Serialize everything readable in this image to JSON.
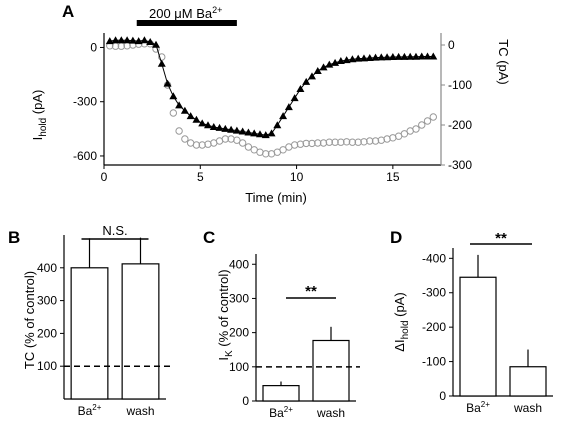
{
  "chart_data": [
    {
      "panel": "A",
      "type": "scatter",
      "title": "",
      "xlabel": "Time (min)",
      "ylabel_left": "I",
      "ylabel_left_sub": "hold",
      "ylabel_left_unit": " (pA)",
      "ylabel_right": "TC  (pA)",
      "xlim": [
        0,
        17.5
      ],
      "ylim_left": [
        -650,
        80
      ],
      "ylim_right": [
        -300,
        30
      ],
      "xticks": [
        "0",
        "5",
        "10",
        "15"
      ],
      "yticks_left": [
        "0",
        "-300",
        "-600"
      ],
      "yticks_right": [
        "0",
        "-100",
        "-200",
        "-300"
      ],
      "treatment_bar": {
        "label": "200 μM Ba",
        "label_sup": "2+",
        "x_start": 1.7,
        "x_end": 6.9
      },
      "series": [
        {
          "axis": "left",
          "marker": "triangle",
          "x": [
            0.3,
            0.6,
            0.9,
            1.2,
            1.5,
            1.8,
            2.1,
            2.4,
            2.7,
            3.0,
            3.3,
            3.6,
            3.9,
            4.2,
            4.5,
            4.8,
            5.1,
            5.4,
            5.7,
            6.0,
            6.3,
            6.6,
            6.9,
            7.2,
            7.5,
            7.8,
            8.1,
            8.4,
            8.7,
            9.0,
            9.3,
            9.6,
            9.9,
            10.2,
            10.5,
            10.8,
            11.1,
            11.4,
            11.7,
            12.0,
            12.3,
            12.6,
            12.9,
            13.2,
            13.5,
            13.8,
            14.1,
            14.4,
            14.7,
            15.0,
            15.3,
            15.6,
            15.9,
            16.2,
            16.5,
            16.8,
            17.1
          ],
          "y": [
            35,
            40,
            40,
            40,
            38,
            35,
            40,
            30,
            15,
            -90,
            -200,
            -270,
            -320,
            -350,
            -380,
            -400,
            -420,
            -430,
            -440,
            -445,
            -450,
            -455,
            -460,
            -465,
            -470,
            -475,
            -480,
            -485,
            -475,
            -430,
            -380,
            -330,
            -280,
            -230,
            -190,
            -160,
            -130,
            -110,
            -95,
            -85,
            -75,
            -70,
            -65,
            -62,
            -60,
            -58,
            -56,
            -55,
            -54,
            -53,
            -52,
            -52,
            -51,
            -51,
            -50,
            -50,
            -50
          ]
        },
        {
          "axis": "right",
          "marker": "circle",
          "x": [
            0.3,
            0.6,
            0.9,
            1.2,
            1.5,
            1.8,
            2.1,
            2.4,
            2.7,
            3.0,
            3.3,
            3.6,
            3.9,
            4.2,
            4.5,
            4.8,
            5.1,
            5.4,
            5.7,
            6.0,
            6.3,
            6.6,
            6.9,
            7.2,
            7.5,
            7.8,
            8.1,
            8.4,
            8.7,
            9.0,
            9.3,
            9.6,
            9.9,
            10.2,
            10.5,
            10.8,
            11.1,
            11.4,
            11.7,
            12.0,
            12.3,
            12.6,
            12.9,
            13.2,
            13.5,
            13.8,
            14.1,
            14.4,
            14.7,
            15.0,
            15.3,
            15.6,
            15.9,
            16.2,
            16.5,
            16.8,
            17.1
          ],
          "y": [
            -2,
            -3,
            -3,
            -2,
            0,
            2,
            3,
            3,
            -10,
            -30,
            -100,
            -170,
            -215,
            -235,
            -245,
            -250,
            -250,
            -248,
            -245,
            -240,
            -235,
            -235,
            -238,
            -245,
            -255,
            -262,
            -268,
            -272,
            -272,
            -268,
            -262,
            -255,
            -250,
            -248,
            -246,
            -246,
            -245,
            -245,
            -243,
            -243,
            -243,
            -242,
            -243,
            -243,
            -242,
            -240,
            -240,
            -238,
            -235,
            -232,
            -228,
            -222,
            -215,
            -210,
            -200,
            -190,
            -180
          ]
        }
      ]
    },
    {
      "panel": "B",
      "type": "bar",
      "categories": [
        "Ba",
        "wash"
      ],
      "category_sups": [
        "2+",
        ""
      ],
      "values": [
        400,
        412
      ],
      "errors": [
        90,
        80
      ],
      "ylabel": "TC (% of control)",
      "ylim": [
        0,
        500
      ],
      "yticks": [
        "100",
        "200",
        "300",
        "400"
      ],
      "reference_line": 100,
      "significance": "N.S."
    },
    {
      "panel": "C",
      "type": "bar",
      "categories": [
        "Ba",
        "wash"
      ],
      "category_sups": [
        "2+",
        ""
      ],
      "values": [
        45,
        177
      ],
      "errors": [
        12,
        40
      ],
      "ylabel": "I",
      "ylabel_sub": "K",
      "ylabel_unit": " (% of control)",
      "ylim": [
        0,
        430
      ],
      "yticks": [
        "0",
        "100",
        "200",
        "300",
        "400"
      ],
      "reference_line": 100,
      "significance": "**"
    },
    {
      "panel": "D",
      "type": "bar",
      "categories": [
        "Ba",
        "wash"
      ],
      "category_sups": [
        "2+",
        ""
      ],
      "values": [
        -345,
        -85
      ],
      "errors": [
        65,
        50
      ],
      "ylabel": "ΔI",
      "ylabel_sub": "hold",
      "ylabel_unit": " (pA)",
      "ylim": [
        0,
        -430
      ],
      "yticks": [
        "0",
        "-100",
        "-200",
        "-300",
        "-400"
      ],
      "significance": "**"
    }
  ]
}
